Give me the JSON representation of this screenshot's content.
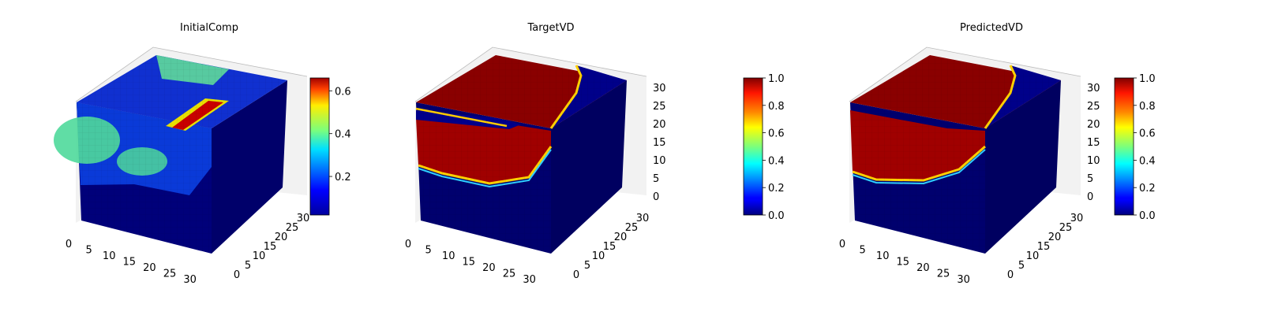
{
  "chart_data": [
    {
      "type": "heatmap",
      "variant": "3d-voxel",
      "title": "InitialComp",
      "xlabel": "",
      "ylabel": "",
      "zlabel": "",
      "x_ticks": [
        "0",
        "5",
        "10",
        "15",
        "20",
        "25",
        "30"
      ],
      "y_ticks": [
        "0",
        "5",
        "10",
        "15",
        "20",
        "25",
        "30"
      ],
      "z_ticks": [],
      "xlim": [
        0,
        32
      ],
      "ylim": [
        0,
        32
      ],
      "zlim": [
        0,
        32
      ],
      "colormap": "jet",
      "colorbar": {
        "range": [
          0.02,
          0.66
        ],
        "ticks": [
          "0.2",
          "0.4",
          "0.6"
        ]
      },
      "value_range": [
        0.02,
        0.66
      ],
      "features": [
        "low-value background (~0.05)",
        "green patch ~0.4 on front face",
        "green patch ~0.4 on top face",
        "high-value ridge ~0.65 on top face"
      ]
    },
    {
      "type": "heatmap",
      "variant": "3d-voxel",
      "title": "TargetVD",
      "xlabel": "",
      "ylabel": "",
      "zlabel": "",
      "x_ticks": [
        "0",
        "5",
        "10",
        "15",
        "20",
        "25",
        "30"
      ],
      "y_ticks": [
        "0",
        "5",
        "10",
        "15",
        "20",
        "25",
        "30"
      ],
      "z_ticks": [
        "0",
        "5",
        "10",
        "15",
        "20",
        "25",
        "30"
      ],
      "xlim": [
        0,
        32
      ],
      "ylim": [
        0,
        32
      ],
      "zlim": [
        0,
        32
      ],
      "colormap": "jet",
      "colorbar": {
        "range": [
          0.0,
          1.0
        ],
        "ticks": [
          "0.0",
          "0.2",
          "0.4",
          "0.6",
          "0.8",
          "1.0"
        ]
      },
      "value_range": [
        0.0,
        1.0
      ],
      "features": [
        "binary field: 1.0 region (red) in upper/left part, 0.0 (blue) elsewhere",
        "thin blue channel cutting the front face near top"
      ]
    },
    {
      "type": "heatmap",
      "variant": "3d-voxel",
      "title": "PredictedVD",
      "xlabel": "",
      "ylabel": "",
      "zlabel": "",
      "x_ticks": [
        "0",
        "5",
        "10",
        "15",
        "20",
        "25",
        "30"
      ],
      "y_ticks": [
        "0",
        "5",
        "10",
        "15",
        "20",
        "25",
        "30"
      ],
      "z_ticks": [
        "0",
        "5",
        "10",
        "15",
        "20",
        "25",
        "30"
      ],
      "xlim": [
        0,
        32
      ],
      "ylim": [
        0,
        32
      ],
      "zlim": [
        0,
        32
      ],
      "colormap": "jet",
      "colorbar": {
        "range": [
          0.0,
          1.0
        ],
        "ticks": [
          "0.0",
          "0.2",
          "0.4",
          "0.6",
          "0.8",
          "1.0"
        ]
      },
      "value_range": [
        0.0,
        1.0
      ],
      "features": [
        "red region similar to target but larger",
        "boundary transitions smoother"
      ]
    }
  ]
}
